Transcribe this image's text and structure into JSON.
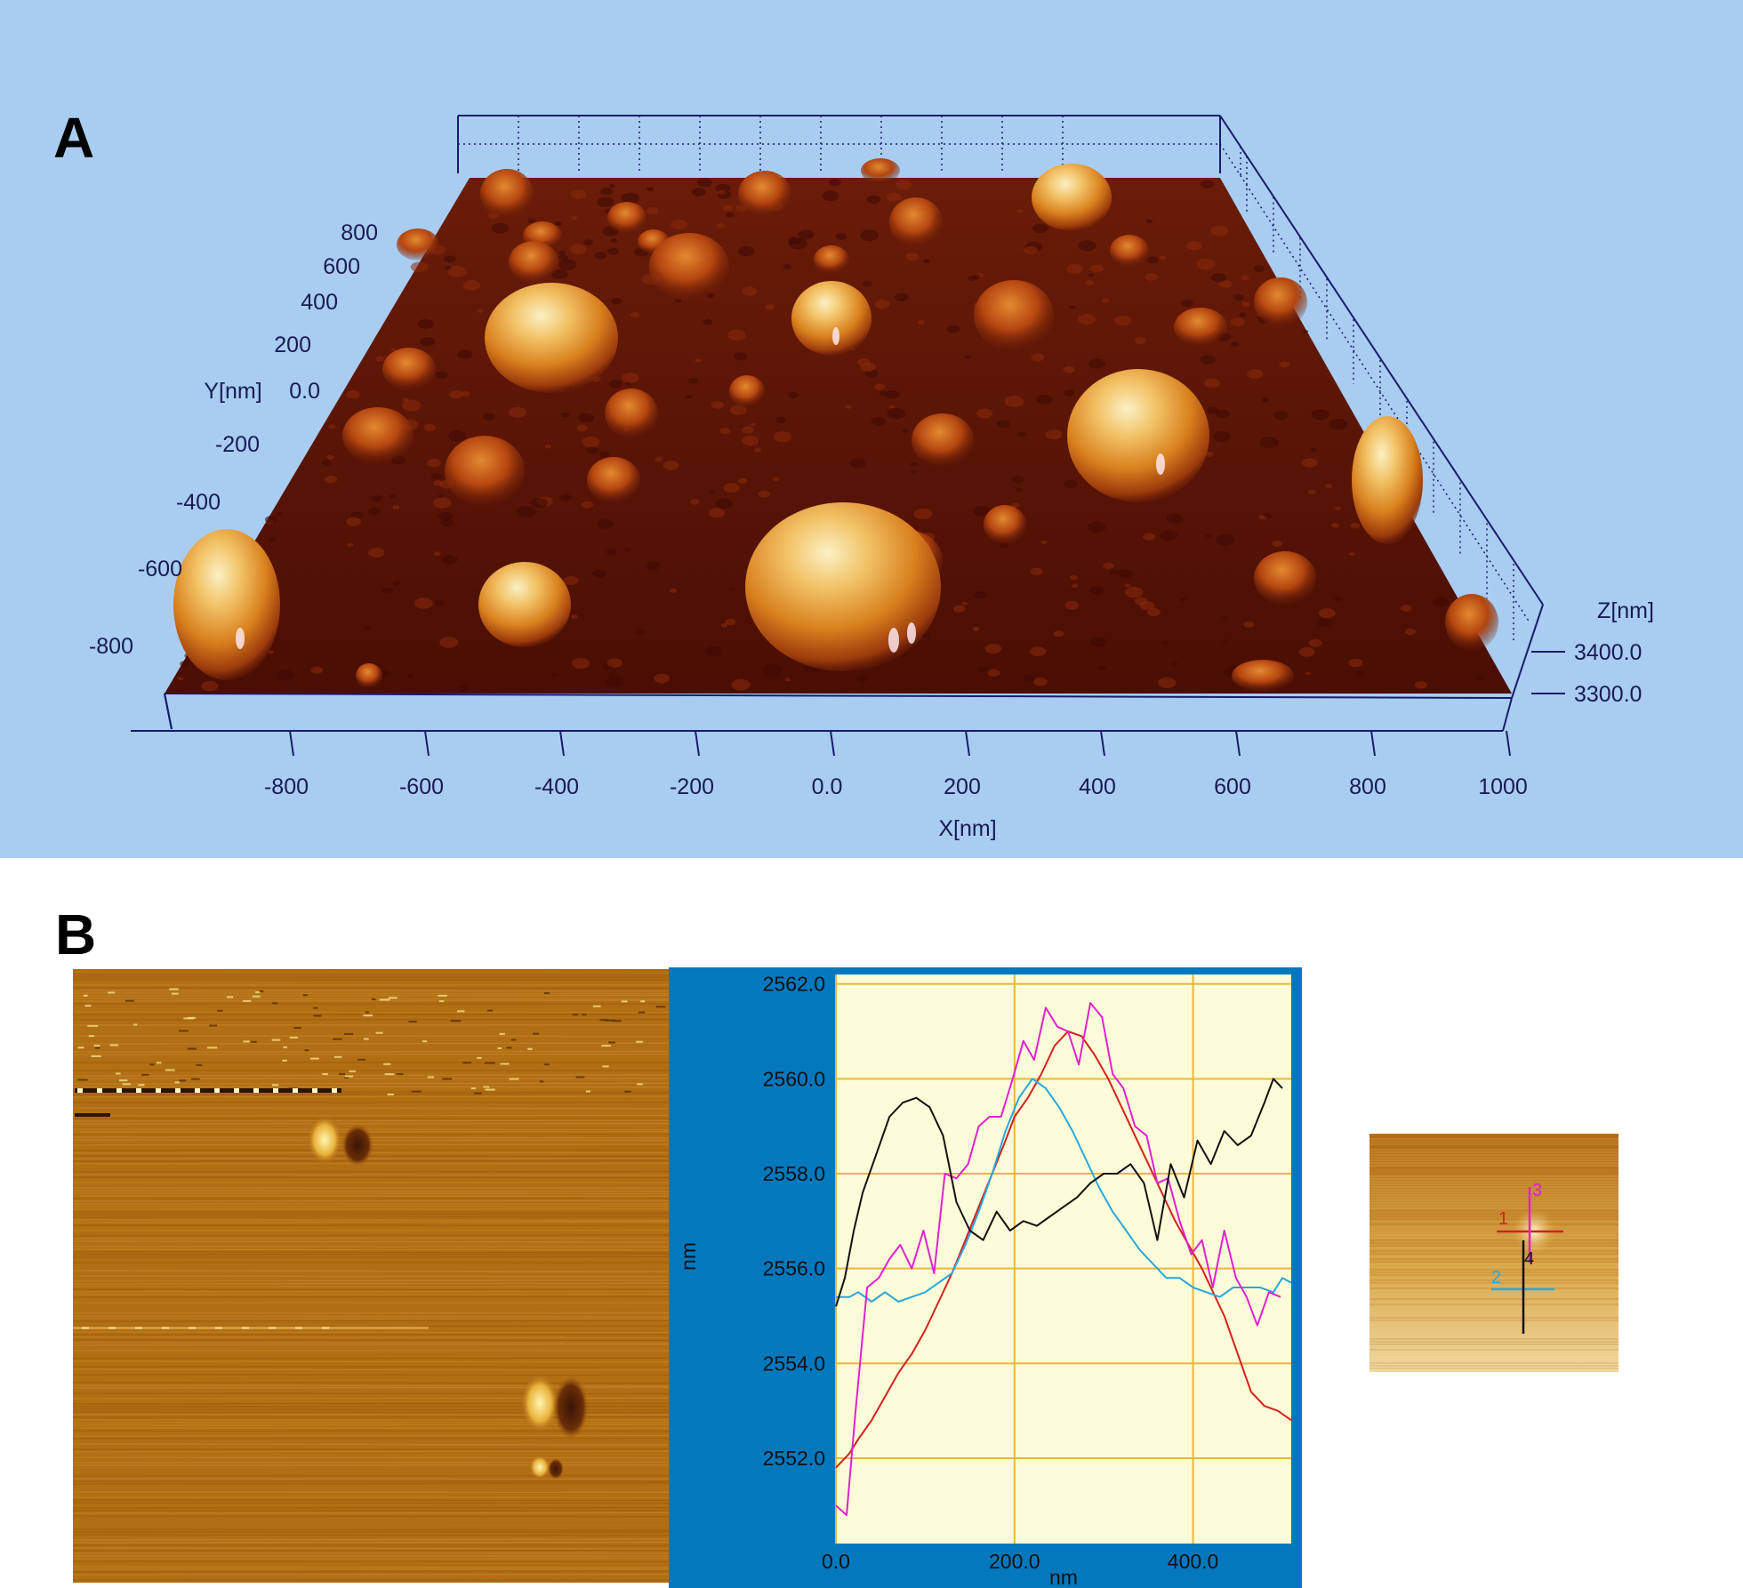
{
  "panels": {
    "a_label": "A",
    "b_label": "B"
  },
  "colors": {
    "panel_a_bg": "#a9cdf0",
    "surface_dark": "#5a1306",
    "surface_peak": "#f2c266",
    "graph_bg": "#fdfcd8",
    "graph_frame": "#0378bd",
    "grid": "#e8b540",
    "line_1": "#d42020",
    "line_2": "#2aa7de",
    "line_3": "#e020d0",
    "line_4": "#111111"
  },
  "chart_data": [
    {
      "type": "surface3d",
      "x_axis": {
        "label": "X[nm]",
        "ticks": [
          "-800",
          "-600",
          "-400",
          "-200",
          "0.0",
          "200",
          "400",
          "600",
          "800",
          "1000"
        ],
        "range": [
          -1000,
          1000
        ]
      },
      "y_axis": {
        "label": "Y[nm]",
        "ticks": [
          "800",
          "600",
          "400",
          "200",
          "0.0",
          "-200",
          "-400",
          "-600",
          "-800"
        ],
        "range": [
          -1000,
          1000
        ]
      },
      "z_axis": {
        "label": "Z[nm]",
        "ticks": [
          "3400.0",
          "3300.0"
        ],
        "range": [
          3300,
          3400
        ]
      }
    },
    {
      "type": "line",
      "xlabel": "nm",
      "ylabel": "nm",
      "xlim": [
        0,
        510
      ],
      "ylim": [
        2550.2,
        2562.2
      ],
      "x_ticks": [
        "0.0",
        "200.0",
        "400.0"
      ],
      "x_tick_values": [
        0,
        200,
        400
      ],
      "y_ticks": [
        "2562.0",
        "2560.0",
        "2558.0",
        "2556.0",
        "2554.0",
        "2552.0"
      ],
      "y_tick_values": [
        2562,
        2560,
        2558,
        2556,
        2554,
        2552
      ],
      "grid": true,
      "series": [
        {
          "color_key": "line_1",
          "x": [
            0,
            15,
            25,
            40,
            55,
            70,
            85,
            100,
            115,
            130,
            145,
            160,
            175,
            190,
            200,
            215,
            230,
            245,
            260,
            275,
            290,
            305,
            320,
            335,
            350,
            365,
            380,
            395,
            410,
            420,
            435,
            450,
            465,
            480,
            495,
            510
          ],
          "y": [
            2551.8,
            2552.1,
            2552.4,
            2552.8,
            2553.3,
            2553.8,
            2554.2,
            2554.7,
            2555.3,
            2555.9,
            2556.6,
            2557.3,
            2558.0,
            2558.7,
            2559.2,
            2559.6,
            2560.1,
            2560.7,
            2561.0,
            2560.9,
            2560.5,
            2560.0,
            2559.4,
            2558.8,
            2558.2,
            2557.6,
            2557.0,
            2556.5,
            2556.0,
            2555.6,
            2555.0,
            2554.2,
            2553.4,
            2553.1,
            2553.0,
            2552.8
          ]
        },
        {
          "color_key": "line_2",
          "x": [
            0,
            15,
            25,
            40,
            55,
            70,
            85,
            100,
            115,
            130,
            145,
            160,
            175,
            190,
            205,
            220,
            235,
            250,
            265,
            280,
            295,
            310,
            325,
            340,
            355,
            370,
            385,
            400,
            415,
            430,
            445,
            460,
            475,
            490,
            500,
            510
          ],
          "y": [
            2555.4,
            2555.4,
            2555.5,
            2555.3,
            2555.5,
            2555.3,
            2555.4,
            2555.5,
            2555.7,
            2555.9,
            2556.5,
            2557.2,
            2558.0,
            2558.9,
            2559.6,
            2560.0,
            2559.8,
            2559.4,
            2558.9,
            2558.3,
            2557.7,
            2557.2,
            2556.8,
            2556.4,
            2556.1,
            2555.8,
            2555.8,
            2555.6,
            2555.5,
            2555.4,
            2555.6,
            2555.6,
            2555.6,
            2555.5,
            2555.8,
            2555.7
          ]
        },
        {
          "color_key": "line_3",
          "x": [
            0,
            12,
            22,
            35,
            48,
            60,
            72,
            85,
            98,
            110,
            122,
            135,
            148,
            160,
            172,
            185,
            198,
            210,
            222,
            235,
            248,
            260,
            272,
            285,
            298,
            310,
            322,
            335,
            348,
            360,
            372,
            385,
            398,
            410,
            422,
            435,
            448,
            460,
            472,
            485,
            498
          ],
          "y": [
            2551.0,
            2550.8,
            2553.0,
            2555.6,
            2555.8,
            2556.2,
            2556.5,
            2556.0,
            2556.8,
            2555.9,
            2558.0,
            2557.9,
            2558.2,
            2559.0,
            2559.2,
            2559.2,
            2560.0,
            2560.8,
            2560.4,
            2561.5,
            2561.1,
            2561.0,
            2560.3,
            2561.6,
            2561.3,
            2560.1,
            2559.8,
            2559.0,
            2558.8,
            2557.8,
            2557.9,
            2557.0,
            2556.3,
            2556.6,
            2555.6,
            2556.8,
            2555.8,
            2555.4,
            2554.8,
            2555.5,
            2555.4
          ]
        },
        {
          "color_key": "line_4",
          "x": [
            0,
            10,
            20,
            30,
            45,
            60,
            75,
            90,
            105,
            120,
            135,
            150,
            165,
            180,
            195,
            210,
            225,
            240,
            255,
            270,
            285,
            300,
            315,
            330,
            345,
            360,
            375,
            390,
            405,
            420,
            435,
            450,
            465,
            480,
            490,
            500
          ],
          "y": [
            2555.2,
            2555.8,
            2556.8,
            2557.6,
            2558.4,
            2559.2,
            2559.5,
            2559.6,
            2559.4,
            2558.8,
            2557.4,
            2556.8,
            2556.6,
            2557.2,
            2556.8,
            2557.0,
            2556.9,
            2557.1,
            2557.3,
            2557.5,
            2557.8,
            2558.0,
            2558.0,
            2558.2,
            2557.8,
            2556.6,
            2558.2,
            2557.5,
            2558.7,
            2558.2,
            2558.9,
            2558.6,
            2558.8,
            2559.5,
            2560.0,
            2559.8
          ]
        }
      ]
    }
  ],
  "inset": {
    "labels": [
      "1",
      "2",
      "3",
      "4"
    ]
  }
}
